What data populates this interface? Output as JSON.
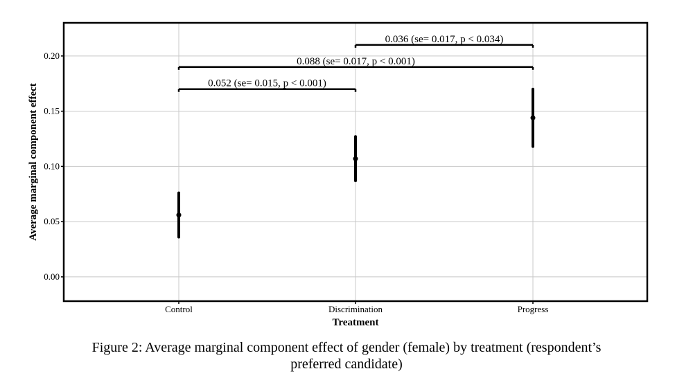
{
  "chart_data": {
    "type": "errorbar",
    "title": "",
    "xlabel": "Treatment",
    "ylabel": "Average marginal component effect",
    "categories": [
      "Control",
      "Discrimination",
      "Progress"
    ],
    "ylim": [
      -0.022,
      0.23
    ],
    "yticks": [
      0.0,
      0.05,
      0.1,
      0.15,
      0.2
    ],
    "ytick_labels": [
      "0.00",
      "0.05",
      "0.10",
      "0.15",
      "0.20"
    ],
    "grid": true,
    "legend": "none",
    "points": [
      {
        "category": "Control",
        "estimate": 0.056,
        "lower": 0.036,
        "upper": 0.076
      },
      {
        "category": "Discrimination",
        "estimate": 0.107,
        "lower": 0.087,
        "upper": 0.127
      },
      {
        "category": "Progress",
        "estimate": 0.144,
        "lower": 0.118,
        "upper": 0.17
      }
    ],
    "comparisons": [
      {
        "from": "Control",
        "to": "Discrimination",
        "y": 0.17,
        "label": "0.052 (se= 0.015, p < 0.001)"
      },
      {
        "from": "Control",
        "to": "Progress",
        "y": 0.19,
        "label": "0.088 (se= 0.017, p < 0.001)"
      },
      {
        "from": "Discrimination",
        "to": "Progress",
        "y": 0.21,
        "label": "0.036 (se= 0.017, p < 0.034)"
      }
    ],
    "colors": {
      "marks": "#000000",
      "grid": "#c8c8c8",
      "frame": "#000000"
    }
  },
  "caption": {
    "line1": "Figure 2: Average marginal component effect of gender (female) by treatment (respondent’s",
    "line2": "preferred candidate)"
  }
}
